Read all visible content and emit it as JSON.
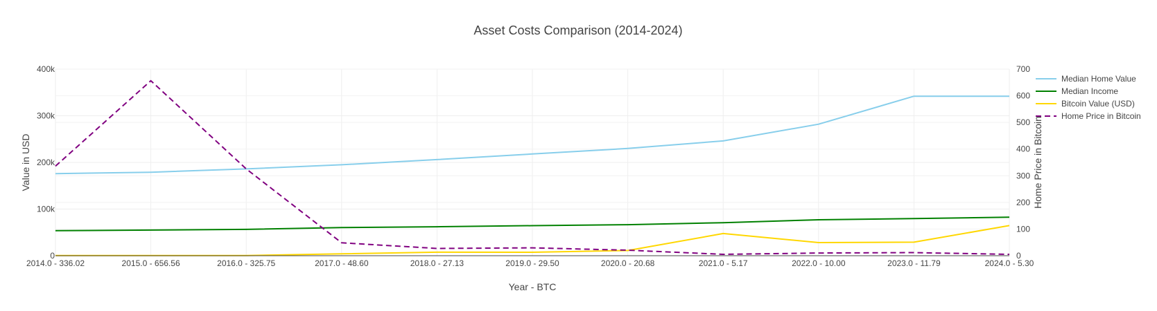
{
  "chart_data": {
    "type": "line",
    "title": "Asset Costs Comparison (2014-2024)",
    "xlabel": "Year - BTC",
    "ylabel": "Value in USD",
    "y2label": "Home Price in Bitcoin",
    "categories": [
      "2014.0 - 336.02",
      "2015.0 - 656.56",
      "2016.0 - 325.75",
      "2017.0 - 48.60",
      "2018.0 - 27.13",
      "2019.0 - 29.50",
      "2020.0 - 20.68",
      "2021.0 - 5.17",
      "2022.0 - 10.00",
      "2023.0 - 11.79",
      "2024.0 - 5.30"
    ],
    "ylim": [
      0,
      400000
    ],
    "y_ticks": [
      0,
      100000,
      200000,
      300000,
      400000
    ],
    "y_tick_labels": [
      "0",
      "100k",
      "200k",
      "300k",
      "400k"
    ],
    "y2lim": [
      0,
      700
    ],
    "y2_ticks": [
      0,
      100,
      200,
      300,
      400,
      500,
      600,
      700
    ],
    "y2_tick_labels": [
      "0",
      "100",
      "200",
      "300",
      "400",
      "500",
      "600",
      "700"
    ],
    "grid": true,
    "legend_position": "top-right",
    "series": [
      {
        "name": "Median Home Value",
        "axis": "y",
        "color": "#87CEEB",
        "dash": "solid",
        "values": [
          176000,
          179000,
          186000,
          195000,
          206000,
          218000,
          230000,
          246000,
          282000,
          342000,
          342000
        ]
      },
      {
        "name": "Median Income",
        "axis": "y",
        "color": "#008000",
        "dash": "solid",
        "values": [
          53700,
          55000,
          56500,
          60300,
          62000,
          64500,
          66500,
          70800,
          77000,
          79500,
          82500
        ]
      },
      {
        "name": "Bitcoin Value (USD)",
        "axis": "y",
        "color": "#FFD700",
        "dash": "solid",
        "values": [
          320,
          310,
          430,
          4000,
          7600,
          7400,
          11100,
          47600,
          28200,
          29000,
          64600
        ]
      },
      {
        "name": "Home Price in Bitcoin",
        "axis": "y2",
        "color": "#800080",
        "dash": "dashed",
        "values": [
          336.02,
          656.56,
          325.75,
          48.6,
          27.13,
          29.5,
          20.68,
          5.17,
          10.0,
          11.79,
          5.3
        ]
      }
    ]
  }
}
